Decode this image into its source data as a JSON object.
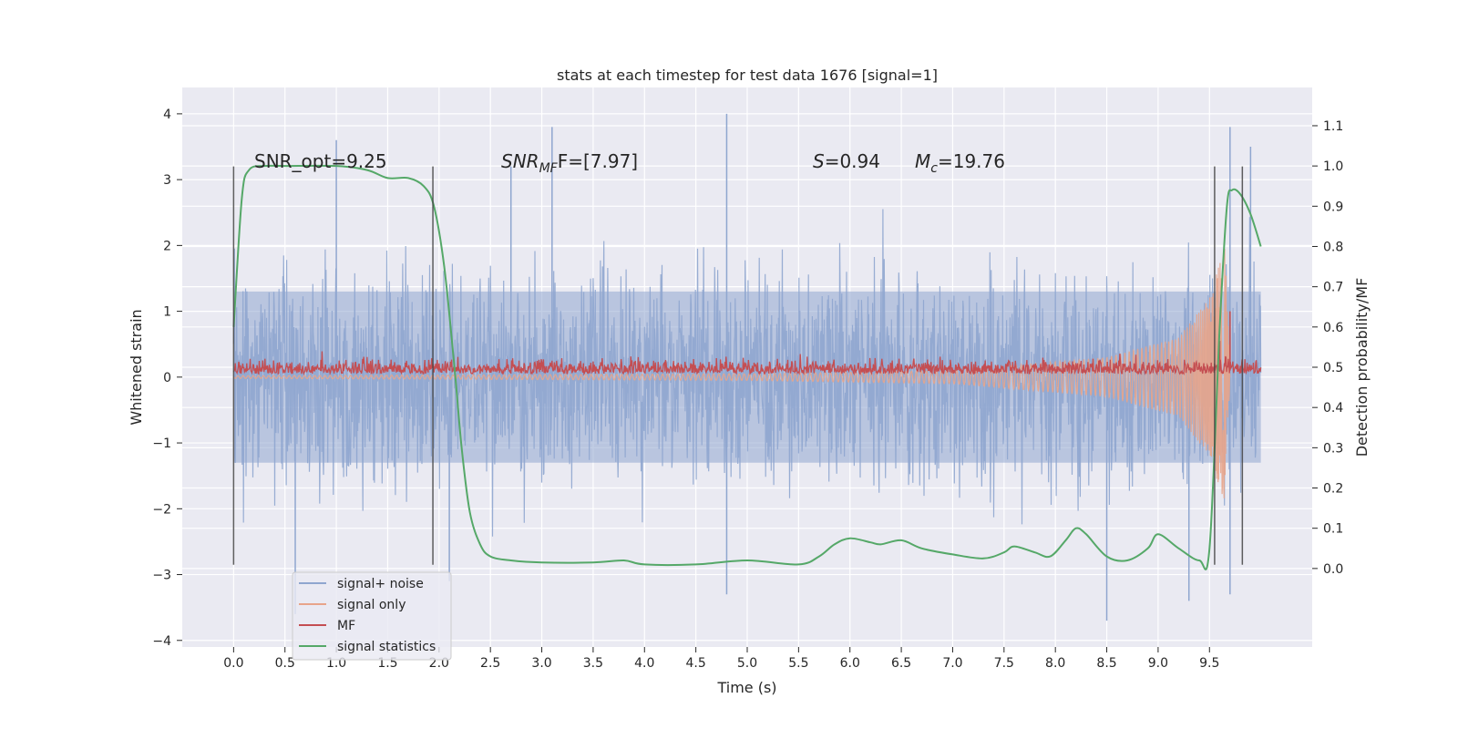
{
  "chart_data": {
    "type": "line",
    "title": "stats at each timestep for test data 1676 [signal=1]",
    "xlabel": "Time (s)",
    "ylabel": "Whitened strain",
    "ylabel_right": "Detection probability/MF",
    "xlim": [
      -0.5,
      10.5
    ],
    "ylim": [
      -4.1,
      4.4
    ],
    "ylim_right": [
      -0.195,
      1.195
    ],
    "x_ticks": [
      0.0,
      0.5,
      1.0,
      1.5,
      2.0,
      2.5,
      3.0,
      3.5,
      4.0,
      4.5,
      5.0,
      5.5,
      6.0,
      6.5,
      7.0,
      7.5,
      8.0,
      8.5,
      9.0,
      9.5
    ],
    "x_tick_labels": [
      "0.0",
      "0.5",
      "1.0",
      "1.5",
      "2.0",
      "2.5",
      "3.0",
      "3.5",
      "4.0",
      "4.5",
      "5.0",
      "5.5",
      "6.0",
      "6.5",
      "7.0",
      "7.5",
      "8.0",
      "8.5",
      "9.0",
      "9.5"
    ],
    "y_ticks": [
      -4,
      -3,
      -2,
      -1,
      0,
      1,
      2,
      3,
      4
    ],
    "y_tick_labels": [
      "−4",
      "−3",
      "−2",
      "−1",
      "0",
      "1",
      "2",
      "3",
      "4"
    ],
    "y_ticks_right": [
      0.0,
      0.1,
      0.2,
      0.3,
      0.4,
      0.5,
      0.6,
      0.7,
      0.8,
      0.9,
      1.0,
      1.1
    ],
    "y_tick_labels_right": [
      "0.0",
      "0.1",
      "0.2",
      "0.3",
      "0.4",
      "0.5",
      "0.6",
      "0.7",
      "0.8",
      "0.9",
      "1.0",
      "1.1"
    ],
    "grid": true,
    "legend_position": "lower-left",
    "annotations": {
      "snr_opt": "SNR_opt=9.25",
      "snr_mf_main": "SNR",
      "snr_mf_sub": "MF",
      "snr_mf_tail": "F=[7.97]",
      "s_main": "S",
      "s_tail": "=0.94",
      "mc_main": "M",
      "mc_sub": "c",
      "mc_tail": "=19.76"
    },
    "vertical_markers": [
      0.0,
      1.94,
      9.55,
      9.82
    ],
    "vertical_marker_range": [
      -2.85,
      3.2
    ],
    "series": [
      {
        "name": "signal+ noise",
        "color": "#8fa6cf",
        "axis": "left",
        "style": "noise band",
        "x_range": [
          0.0,
          10.0
        ],
        "typical_range": [
          -1.3,
          1.3
        ],
        "peaks": [
          {
            "x": 1.0,
            "y": 3.6
          },
          {
            "x": 2.7,
            "y": 3.2
          },
          {
            "x": 3.1,
            "y": 3.8
          },
          {
            "x": 4.8,
            "y": 4.0
          },
          {
            "x": 9.7,
            "y": 3.8
          },
          {
            "x": 9.9,
            "y": 3.5
          },
          {
            "x": 0.6,
            "y": -3.6
          },
          {
            "x": 2.1,
            "y": -3.1
          },
          {
            "x": 4.8,
            "y": -3.3
          },
          {
            "x": 8.5,
            "y": -3.7
          },
          {
            "x": 9.3,
            "y": -3.4
          },
          {
            "x": 9.7,
            "y": -3.3
          }
        ]
      },
      {
        "name": "signal only",
        "color": "#e8a48a",
        "axis": "left",
        "style": "chirp",
        "x_range": [
          0.0,
          9.7
        ],
        "amplitude_points": [
          [
            0.0,
            0.02
          ],
          [
            5.0,
            0.05
          ],
          [
            7.0,
            0.1
          ],
          [
            8.5,
            0.3
          ],
          [
            9.2,
            0.6
          ],
          [
            9.5,
            1.2
          ],
          [
            9.65,
            2.0
          ],
          [
            9.7,
            0.0
          ]
        ]
      },
      {
        "name": "MF",
        "color": "#c44e52",
        "axis": "left",
        "style": "noise band",
        "x_range": [
          0.0,
          10.0
        ],
        "typical_range": [
          0.05,
          0.3
        ],
        "peaks": [
          {
            "x": 9.7,
            "y": 1.0
          },
          {
            "x": 9.6,
            "y": 0.55
          }
        ]
      },
      {
        "name": "signal statistics",
        "color": "#55a868",
        "axis": "right",
        "style": "line",
        "x": [
          0.0,
          0.08,
          0.15,
          0.3,
          0.5,
          1.0,
          1.3,
          1.5,
          1.7,
          1.85,
          1.95,
          2.05,
          2.15,
          2.22,
          2.3,
          2.4,
          2.5,
          2.7,
          3.0,
          3.5,
          3.8,
          4.0,
          4.5,
          5.0,
          5.5,
          5.7,
          5.85,
          6.0,
          6.2,
          6.3,
          6.5,
          6.7,
          7.0,
          7.3,
          7.5,
          7.6,
          7.8,
          7.95,
          8.1,
          8.2,
          8.3,
          8.5,
          8.7,
          8.9,
          9.0,
          9.2,
          9.4,
          9.5,
          9.6,
          9.67,
          9.72,
          9.8,
          9.9,
          10.0
        ],
        "y": [
          0.6,
          0.92,
          0.99,
          1.0,
          1.0,
          1.0,
          0.99,
          0.97,
          0.97,
          0.95,
          0.9,
          0.75,
          0.5,
          0.3,
          0.14,
          0.06,
          0.03,
          0.02,
          0.015,
          0.015,
          0.02,
          0.01,
          0.01,
          0.02,
          0.01,
          0.03,
          0.06,
          0.075,
          0.065,
          0.06,
          0.07,
          0.05,
          0.035,
          0.025,
          0.04,
          0.055,
          0.04,
          0.03,
          0.07,
          0.1,
          0.085,
          0.03,
          0.02,
          0.05,
          0.085,
          0.05,
          0.02,
          0.05,
          0.6,
          0.9,
          0.94,
          0.93,
          0.88,
          0.8
        ]
      }
    ]
  }
}
